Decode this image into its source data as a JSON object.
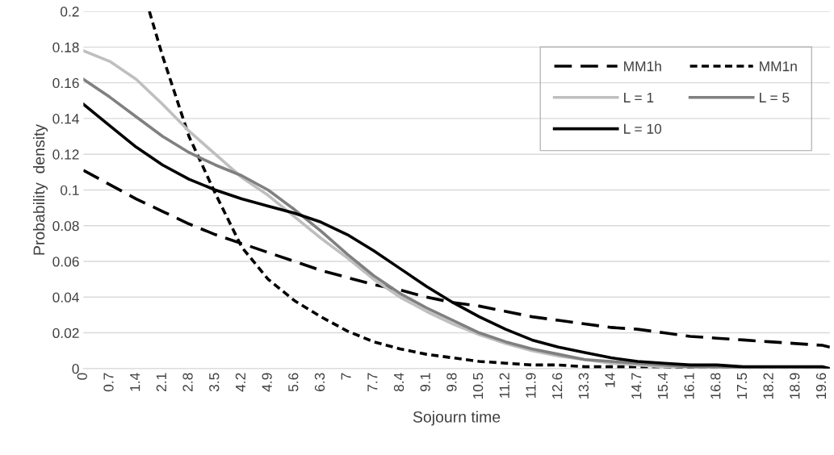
{
  "chart_data": {
    "type": "line",
    "xlabel": "Sojourn time",
    "ylabel": "Probability  density",
    "x": [
      0,
      0.7,
      1.4,
      2.1,
      2.8,
      3.5,
      4.2,
      4.9,
      5.6,
      6.3,
      7,
      7.7,
      8.4,
      9.1,
      9.8,
      10.5,
      11.2,
      11.9,
      12.6,
      13.3,
      14,
      14.7,
      15.4,
      16.1,
      16.8,
      17.5,
      18.2,
      18.9,
      19.6,
      19.8
    ],
    "series": [
      {
        "name": "MM1h",
        "color": "#000000",
        "line_style": "dashed",
        "values": [
          0.111,
          0.103,
          0.095,
          0.088,
          0.081,
          0.075,
          0.07,
          0.065,
          0.06,
          0.055,
          0.051,
          0.047,
          0.044,
          0.04,
          0.037,
          0.035,
          0.032,
          0.029,
          0.027,
          0.025,
          0.023,
          0.022,
          0.02,
          0.018,
          0.017,
          0.016,
          0.015,
          0.014,
          0.013,
          0.012
        ]
      },
      {
        "name": "MM1n",
        "color": "#000000",
        "line_style": "dotted",
        "x": [
          1.75,
          2.1,
          2.8,
          3.5,
          4.2,
          4.9,
          5.6,
          6.3,
          7,
          7.7,
          8.4,
          9.1,
          9.8,
          10.5,
          11.2,
          11.9,
          12.6,
          13.3,
          14,
          14.7,
          15.4,
          16.1,
          16.8,
          17.5,
          18.2,
          18.9,
          19.6,
          19.8
        ],
        "values": [
          0.2,
          0.175,
          0.13,
          0.098,
          0.068,
          0.05,
          0.038,
          0.029,
          0.021,
          0.015,
          0.011,
          0.008,
          0.006,
          0.004,
          0.003,
          0.002,
          0.002,
          0.001,
          0.001,
          0.001,
          0.001,
          0,
          0,
          0,
          0,
          0,
          0,
          0
        ]
      },
      {
        "name": "L = 1",
        "color": "#bfbfbf",
        "line_style": "solid",
        "values": [
          0.178,
          0.172,
          0.162,
          0.148,
          0.133,
          0.12,
          0.107,
          0.097,
          0.085,
          0.073,
          0.062,
          0.05,
          0.04,
          0.032,
          0.025,
          0.019,
          0.014,
          0.01,
          0.007,
          0.005,
          0.003,
          0.002,
          0.001,
          0.001,
          0,
          0,
          0,
          0,
          0,
          0
        ]
      },
      {
        "name": "L = 5",
        "color": "#808080",
        "line_style": "solid",
        "values": [
          0.162,
          0.152,
          0.141,
          0.13,
          0.121,
          0.114,
          0.108,
          0.1,
          0.089,
          0.077,
          0.064,
          0.052,
          0.042,
          0.034,
          0.027,
          0.02,
          0.015,
          0.011,
          0.008,
          0.005,
          0.004,
          0.003,
          0.002,
          0.001,
          0.001,
          0,
          0,
          0,
          0,
          0
        ]
      },
      {
        "name": "L = 10",
        "color": "#000000",
        "line_style": "solid",
        "values": [
          0.148,
          0.136,
          0.124,
          0.114,
          0.106,
          0.1,
          0.095,
          0.091,
          0.087,
          0.082,
          0.075,
          0.066,
          0.056,
          0.046,
          0.037,
          0.029,
          0.022,
          0.016,
          0.012,
          0.009,
          0.006,
          0.004,
          0.003,
          0.002,
          0.002,
          0.001,
          0.001,
          0.001,
          0.001,
          0
        ]
      }
    ],
    "xlim": [
      0,
      19.8
    ],
    "xticks": [
      0,
      0.7,
      1.4,
      2.1,
      2.8,
      3.5,
      4.2,
      4.9,
      5.6,
      6.3,
      7,
      7.7,
      8.4,
      9.1,
      9.8,
      10.5,
      11.2,
      11.9,
      12.6,
      13.3,
      14,
      14.7,
      15.4,
      16.1,
      16.8,
      17.5,
      18.2,
      18.9,
      19.6
    ],
    "ylim": [
      0,
      0.2
    ],
    "yticks": [
      0,
      0.02,
      0.04,
      0.06,
      0.08,
      0.1,
      0.12,
      0.14,
      0.16,
      0.18,
      0.2
    ],
    "grid": "y",
    "legend": "top right",
    "marker": "none"
  }
}
